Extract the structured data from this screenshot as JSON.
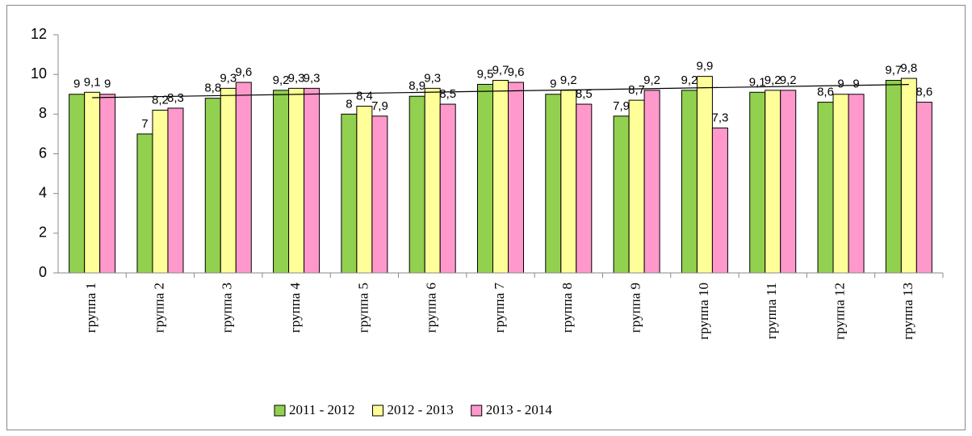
{
  "chart_data": {
    "type": "bar",
    "categories": [
      "группа 1",
      "группа 2",
      "группа 3",
      "группа 4",
      "группа 5",
      "группа 6",
      "группа 7",
      "группа 8",
      "группа 9",
      "группа 10",
      "группа 11",
      "группа 12",
      "группа 13"
    ],
    "series": [
      {
        "name": "2011 - 2012",
        "color": "#92d050",
        "values": [
          9,
          7,
          8.8,
          9.2,
          8,
          8.9,
          9.5,
          9,
          7.9,
          9.2,
          9.1,
          8.6,
          9.7
        ],
        "value_labels": [
          "9",
          "7",
          "8,8",
          "9,2",
          "8",
          "8,9",
          "9,5",
          "9",
          "7,9",
          "9,2",
          "9,1",
          "8,6",
          "9,7"
        ]
      },
      {
        "name": "2012 - 2013",
        "color": "#ffff99",
        "trendline": "linear",
        "values": [
          9.1,
          8.2,
          9.3,
          9.3,
          8.4,
          9.3,
          9.7,
          9.2,
          8.7,
          9.9,
          9.2,
          9,
          9.8
        ],
        "value_labels": [
          "9,1",
          "8,2",
          "9,3",
          "9,3",
          "8,4",
          "9,3",
          "9,7",
          "9,2",
          "8,7",
          "9,9",
          "9,2",
          "9",
          "9,8"
        ]
      },
      {
        "name": "2013 - 2014",
        "color": "#ff99cc",
        "values": [
          9,
          8.3,
          9.6,
          9.3,
          7.9,
          8.5,
          9.6,
          8.5,
          9.2,
          7.3,
          9.2,
          9,
          8.6
        ],
        "value_labels": [
          "9",
          "8,3",
          "9,6",
          "9,3",
          "7,9",
          "8,5",
          "9,6",
          "8,5",
          "9,2",
          "7,3",
          "9,2",
          "9",
          "8,6"
        ]
      }
    ],
    "ylim": [
      0,
      12
    ],
    "yticks": [
      0,
      2,
      4,
      6,
      8,
      10,
      12
    ],
    "grid": false,
    "legend": "bottom"
  }
}
